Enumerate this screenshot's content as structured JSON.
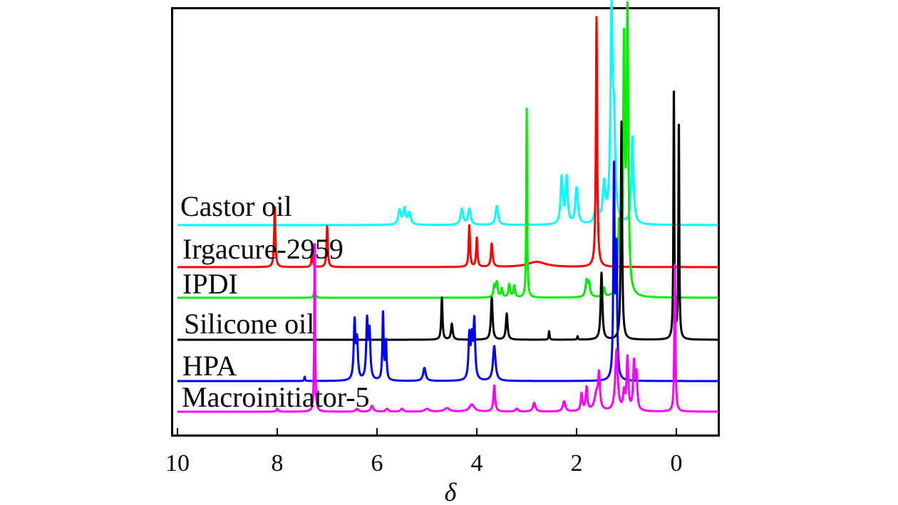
{
  "chart_data": {
    "type": "line",
    "xlabel": "δ",
    "ylabel": "",
    "xlim": [
      10,
      -0.9
    ],
    "x_reversed": true,
    "x_ticks": [
      10,
      8,
      6,
      4,
      2,
      0
    ],
    "x_tick_labels": [
      "10",
      "8",
      "6",
      "4",
      "2",
      "0"
    ],
    "grid": false,
    "legend": "inline labels",
    "series": [
      {
        "name": "Castor oil",
        "color": "#00ffff",
        "baseline": 0,
        "peaks": [
          [
            5.55,
            0.5,
            0.03
          ],
          [
            5.45,
            0.55,
            0.03
          ],
          [
            5.35,
            0.4,
            0.03
          ],
          [
            4.3,
            0.55,
            0.03
          ],
          [
            4.15,
            0.55,
            0.03
          ],
          [
            3.6,
            0.65,
            0.03
          ],
          [
            2.3,
            1.6,
            0.025
          ],
          [
            2.2,
            1.6,
            0.025
          ],
          [
            2.0,
            1.25,
            0.03
          ],
          [
            1.6,
            1.0,
            0.03
          ],
          [
            1.45,
            1.3,
            0.03
          ],
          [
            1.3,
            6.9,
            0.025
          ],
          [
            1.25,
            3.0,
            0.03
          ],
          [
            0.88,
            3.0,
            0.025
          ]
        ]
      },
      {
        "name": "Irgacure-2959",
        "color": "#ff0000",
        "baseline": 1,
        "peaks": [
          [
            8.05,
            2.1,
            0.015
          ],
          [
            7.3,
            0.5,
            0.015
          ],
          [
            7.0,
            1.4,
            0.015
          ],
          [
            4.15,
            1.45,
            0.015
          ],
          [
            4.0,
            1.0,
            0.015
          ],
          [
            3.7,
            0.8,
            0.02
          ],
          [
            2.8,
            0.18,
            0.22
          ],
          [
            1.6,
            8.6,
            0.015
          ]
        ]
      },
      {
        "name": "IPDI",
        "color": "#00ee00",
        "baseline": 2,
        "peaks": [
          [
            7.25,
            0.3,
            0.015
          ],
          [
            3.65,
            0.4,
            0.02
          ],
          [
            3.6,
            0.5,
            0.02
          ],
          [
            3.5,
            0.3,
            0.02
          ],
          [
            3.35,
            0.45,
            0.02
          ],
          [
            3.25,
            0.4,
            0.02
          ],
          [
            3.0,
            6.5,
            0.01
          ],
          [
            1.8,
            0.55,
            0.025
          ],
          [
            1.75,
            0.45,
            0.025
          ],
          [
            1.45,
            0.3,
            0.02
          ],
          [
            1.15,
            2.3,
            0.02
          ],
          [
            1.05,
            8.5,
            0.02
          ],
          [
            0.98,
            9.5,
            0.02
          ]
        ]
      },
      {
        "name": "Silicone oil",
        "color": "#000000",
        "baseline": 3,
        "peaks": [
          [
            4.7,
            1.45,
            0.015
          ],
          [
            4.5,
            0.55,
            0.02
          ],
          [
            3.7,
            1.45,
            0.02
          ],
          [
            3.4,
            0.9,
            0.02
          ],
          [
            2.55,
            0.3,
            0.01
          ],
          [
            1.98,
            0.12,
            0.01
          ],
          [
            1.5,
            2.3,
            0.02
          ],
          [
            1.1,
            7.5,
            0.015
          ],
          [
            0.05,
            8.8,
            0.01
          ],
          [
            -0.05,
            7.6,
            0.01
          ]
        ]
      },
      {
        "name": "HPA",
        "color": "#0000ff",
        "baseline": 4,
        "peaks": [
          [
            7.45,
            0.15,
            0.01
          ],
          [
            6.45,
            2.0,
            0.02
          ],
          [
            6.4,
            1.3,
            0.02
          ],
          [
            6.2,
            2.0,
            0.02
          ],
          [
            6.15,
            1.6,
            0.02
          ],
          [
            5.88,
            2.3,
            0.015
          ],
          [
            5.82,
            1.3,
            0.015
          ],
          [
            5.05,
            0.45,
            0.03
          ],
          [
            4.15,
            1.5,
            0.02
          ],
          [
            4.1,
            1.3,
            0.02
          ],
          [
            4.05,
            2.0,
            0.02
          ],
          [
            3.65,
            1.2,
            0.03
          ],
          [
            1.25,
            7.3,
            0.015
          ],
          [
            1.2,
            4.3,
            0.015
          ]
        ]
      },
      {
        "name": "Macroinitiator-5",
        "color": "#ff00ff",
        "baseline": 5,
        "peaks": [
          [
            8.0,
            0.1,
            0.02
          ],
          [
            7.25,
            6.0,
            0.01
          ],
          [
            6.4,
            0.1,
            0.03
          ],
          [
            6.1,
            0.2,
            0.03
          ],
          [
            5.8,
            0.1,
            0.03
          ],
          [
            5.5,
            0.1,
            0.03
          ],
          [
            5.0,
            0.1,
            0.05
          ],
          [
            4.6,
            0.12,
            0.06
          ],
          [
            4.1,
            0.25,
            0.06
          ],
          [
            3.65,
            0.9,
            0.02
          ],
          [
            3.2,
            0.1,
            0.03
          ],
          [
            2.85,
            0.3,
            0.03
          ],
          [
            2.25,
            0.35,
            0.03
          ],
          [
            1.9,
            0.6,
            0.02
          ],
          [
            1.8,
            0.8,
            0.02
          ],
          [
            1.6,
            0.6,
            0.05
          ],
          [
            1.55,
            1.1,
            0.02
          ],
          [
            1.2,
            2.1,
            0.03
          ],
          [
            1.05,
            0.6,
            0.02
          ],
          [
            0.98,
            1.8,
            0.02
          ],
          [
            0.85,
            1.6,
            0.02
          ],
          [
            0.8,
            1.2,
            0.02
          ],
          [
            0.03,
            5.2,
            0.012
          ]
        ]
      }
    ]
  }
}
